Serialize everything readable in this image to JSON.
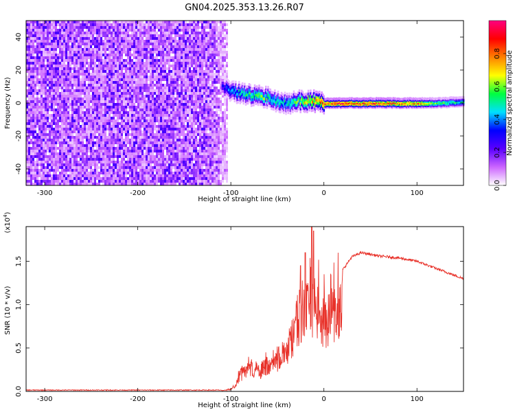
{
  "title": "GN04.2025.353.13.26.R07",
  "chart_data": [
    {
      "type": "heatmap",
      "xlabel": "Height of straight line (km)",
      "ylabel": "Frequency (Hz)",
      "xlim": [
        -320,
        150
      ],
      "ylim": [
        -50,
        50
      ],
      "xticks": [
        "-300",
        "-200",
        "-100",
        "0",
        "100"
      ],
      "yticks": [
        "-40",
        "-20",
        "0",
        "20",
        "40"
      ],
      "colorbar": {
        "label": "Normalized spectral amplitude",
        "range": [
          0.0,
          1.0
        ],
        "ticks": [
          "0.0",
          "0.2",
          "0.4",
          "0.6",
          "0.8"
        ],
        "colors": [
          "#ffffff",
          "#cc66ff",
          "#5a00ff",
          "#0000ff",
          "#00e0ff",
          "#00ff40",
          "#ffff00",
          "#ff8000",
          "#ff0000",
          "#ff0080"
        ]
      },
      "noise_region": {
        "x": [
          -320,
          -105
        ],
        "level": 0.15
      },
      "ridge": {
        "x": [
          -110,
          -100,
          -90,
          -80,
          -70,
          -60,
          -50,
          -40,
          -30,
          -20,
          -10,
          0,
          10,
          20,
          40,
          60,
          80,
          100,
          120,
          150
        ],
        "freq": [
          10,
          7,
          6,
          5,
          4,
          3,
          1,
          -1,
          1,
          1,
          1,
          0,
          0,
          0,
          0,
          0,
          0,
          0,
          0,
          1
        ],
        "amplitude": [
          0.3,
          0.45,
          0.5,
          0.55,
          0.6,
          0.55,
          0.5,
          0.5,
          0.6,
          0.7,
          0.8,
          0.85,
          0.9,
          0.9,
          0.9,
          0.9,
          0.85,
          0.8,
          0.6,
          0.5
        ]
      }
    },
    {
      "type": "line",
      "xlabel": "Height of straight line (km)",
      "ylabel": "SNR (10 * v/v)",
      "yscale_note": "(x10",
      "yscale_exp": "4",
      "xlim": [
        -320,
        150
      ],
      "ylim": [
        0,
        1.9
      ],
      "xticks": [
        "-300",
        "-200",
        "-100",
        "0",
        "100"
      ],
      "yticks": [
        "0.0",
        "0.5",
        "1.0",
        "1.5"
      ],
      "color": "#e8322a",
      "series": [
        {
          "x": [
            -320,
            -110,
            -100,
            -95,
            -90,
            -85,
            -80,
            -75,
            -70,
            -65,
            -60,
            -55,
            -50,
            -45,
            -40,
            -35,
            -30,
            -25,
            -20,
            -15,
            -10,
            -5,
            0,
            10,
            20,
            30,
            40,
            50,
            60,
            80,
            100,
            120,
            150
          ],
          "y": [
            0.01,
            0.01,
            0.03,
            0.08,
            0.25,
            0.3,
            0.4,
            0.35,
            0.3,
            0.35,
            0.4,
            0.45,
            0.5,
            0.55,
            0.6,
            0.8,
            1.0,
            1.2,
            1.3,
            1.4,
            1.3,
            1.2,
            1.1,
            1.15,
            1.4,
            1.55,
            1.6,
            1.58,
            1.56,
            1.54,
            1.5,
            1.42,
            1.3
          ]
        }
      ],
      "peaks": [
        {
          "x": -13,
          "y": 1.95
        },
        {
          "x": -11,
          "y": 1.85
        },
        {
          "x": -20,
          "y": 1.6
        },
        {
          "x": -25,
          "y": 1.45
        }
      ]
    }
  ]
}
